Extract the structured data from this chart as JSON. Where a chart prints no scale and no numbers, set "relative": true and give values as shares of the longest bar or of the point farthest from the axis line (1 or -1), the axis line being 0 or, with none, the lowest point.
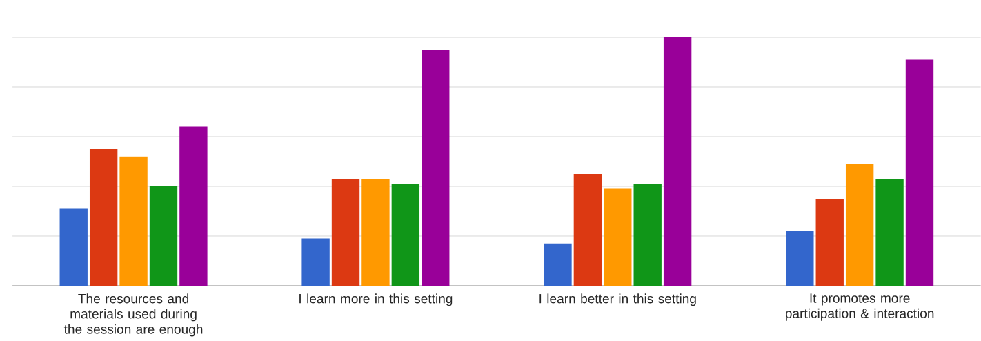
{
  "chart_data": {
    "type": "bar",
    "relative": true,
    "grid": "y",
    "categories": [
      "The resources and materials used during the session are enough",
      "I learn more in this setting",
      "I learn better in this setting",
      "It promotes more participation & interaction"
    ],
    "series": [
      {
        "color": "#3366cc",
        "values": [
          0.31,
          0.19,
          0.17,
          0.22
        ]
      },
      {
        "color": "#dc3912",
        "values": [
          0.55,
          0.43,
          0.45,
          0.35
        ]
      },
      {
        "color": "#ff9900",
        "values": [
          0.52,
          0.43,
          0.39,
          0.49
        ]
      },
      {
        "color": "#109618",
        "values": [
          0.4,
          0.41,
          0.41,
          0.43
        ]
      },
      {
        "color": "#990099",
        "values": [
          0.64,
          0.95,
          1,
          0.91
        ]
      }
    ]
  }
}
